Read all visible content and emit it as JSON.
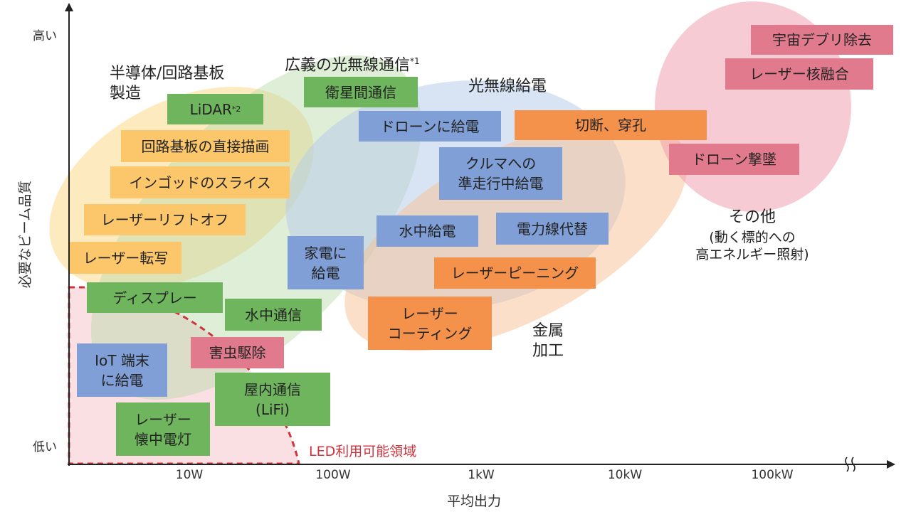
{
  "axes": {
    "y_title": "必要なビーム品質",
    "y_high": "高い",
    "y_low": "低い",
    "x_title": "平均出力",
    "x_ticks": [
      "10W",
      "100W",
      "1kW",
      "10kW",
      "100kW"
    ]
  },
  "groups": {
    "semiconductor": "半導体/回路基板\n製造",
    "optical_comm": "広義の光無線通信",
    "optical_comm_note": "*1",
    "optical_power": "光無線給電",
    "metal": "金属\n加工",
    "other": "その他",
    "other_note": "(動く標的への\n高エネルギー照射)"
  },
  "led_label": "LED利用可能領域",
  "boxes": {
    "uchu": "宇宙デブリ除去",
    "kakuyugo": "レーザー核融合",
    "drone_gekitsui": "ドローン撃墜",
    "setsudan": "切断、穿孔",
    "eisei": "衛星間通信",
    "lidar": "LiDAR",
    "lidar_note": "*2",
    "kairo_byoga": "回路基板の直接描画",
    "ingot": "インゴッドのスライス",
    "lift_off": "レーザーリフトオフ",
    "tensha": "レーザー転写",
    "drone_kyuden": "ドローンに給電",
    "kuruma": "クルマへの\n準走行中給電",
    "suichu_kyuden": "水中給電",
    "denryokusen": "電力線代替",
    "kaden": "家電に\n給電",
    "peening": "レーザーピーニング",
    "coating": "レーザー\nコーティング",
    "display": "ディスプレー",
    "suichu_tsushin": "水中通信",
    "gaichu": "害虫駆除",
    "iot": "IoT 端末\nに給電",
    "okunai": "屋内通信\n(LiFi)",
    "kaichu": "レーザー\n懐中電灯"
  },
  "colors": {
    "green": "#6fb55e",
    "yellow": "#fbc76a",
    "blue": "#7f9fd6",
    "orange": "#f4914a",
    "pink": "#e27a8d",
    "led_red": "#d0333d"
  }
}
